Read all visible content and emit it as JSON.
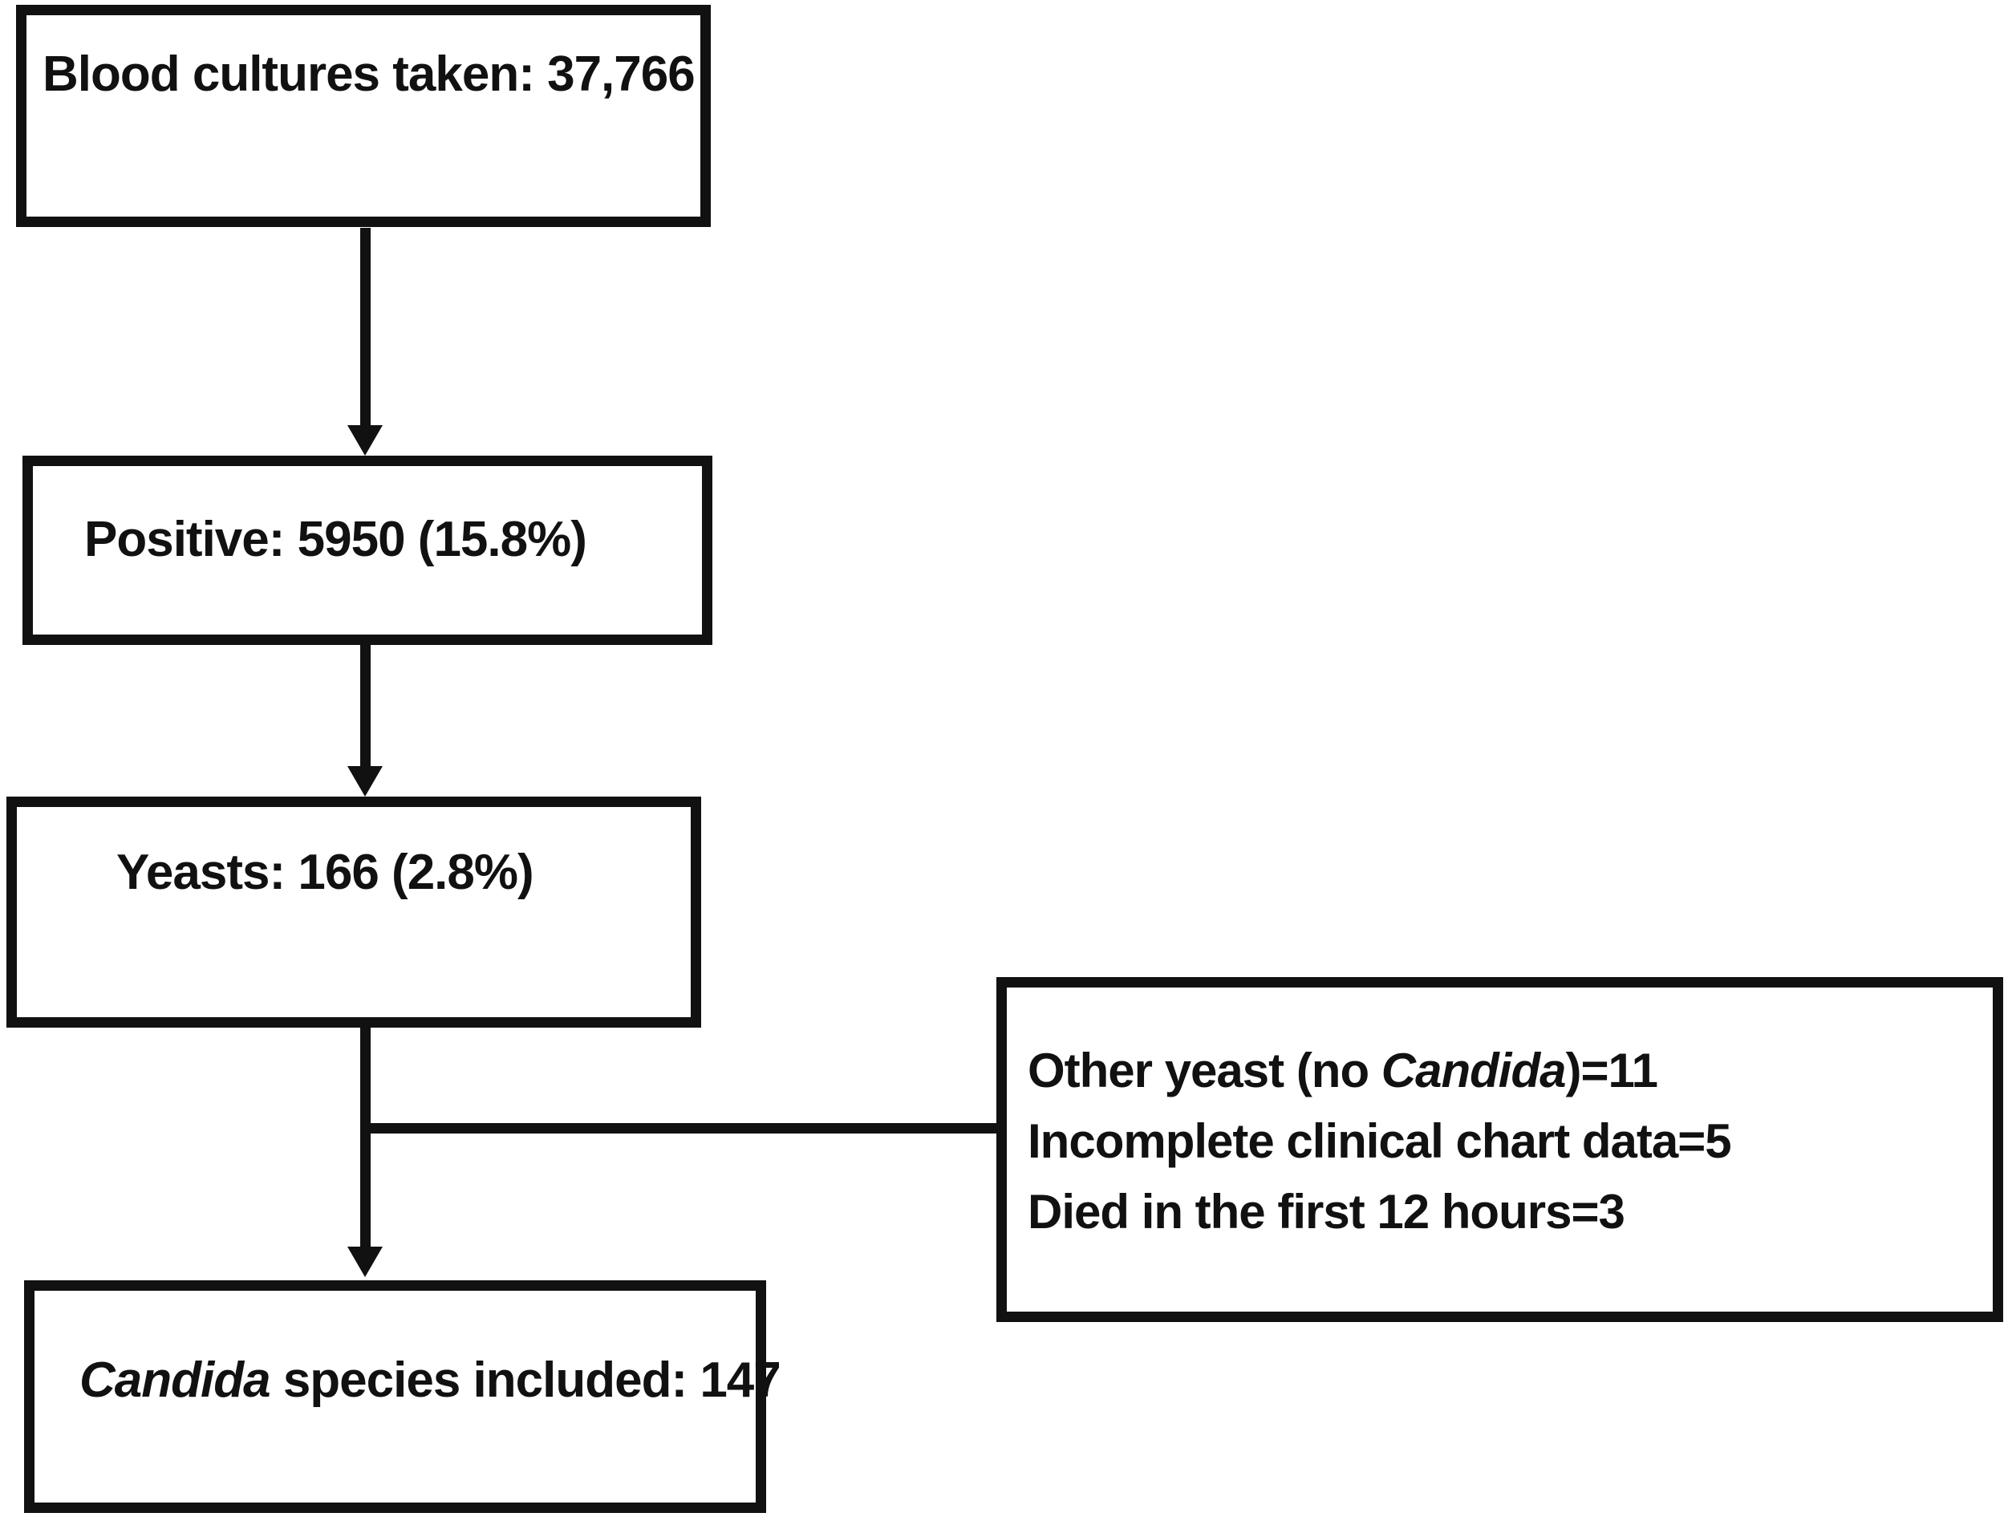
{
  "flowchart": {
    "colors": {
      "ink": "#111111",
      "background": "#ffffff"
    },
    "box_blood_cultures": {
      "label": "Blood cultures taken: 37,766"
    },
    "box_positive": {
      "label": "Positive: 5950 (15.8%)"
    },
    "box_yeasts": {
      "label": "Yeasts: 166 (2.8%)"
    },
    "box_candida_included": {
      "label_italic": "Candida",
      "label_rest": " species included: 147"
    },
    "box_exclusions": {
      "line1_pre": "Other yeast (no ",
      "line1_italic": "Candida",
      "line1_post": ")=11",
      "line2": "Incomplete clinical chart data=5",
      "line3": "Died in the first 12 hours=3"
    }
  }
}
